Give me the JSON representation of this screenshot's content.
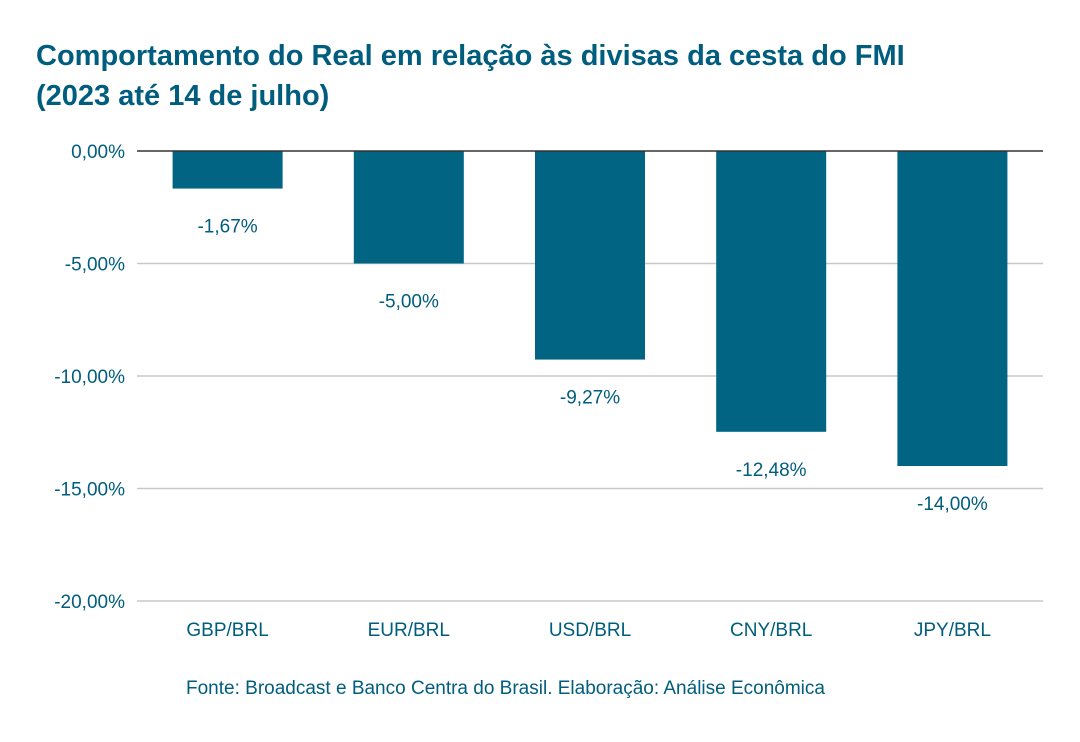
{
  "chart_data": {
    "type": "bar",
    "title": "Comportamento do Real em relação às divisas da cesta do FMI",
    "subtitle": "(2023 até 14 de julho)",
    "xlabel": "",
    "ylabel": "",
    "categories": [
      "GBP/BRL",
      "EUR/BRL",
      "USD/BRL",
      "CNY/BRL",
      "JPY/BRL"
    ],
    "values": [
      -1.67,
      -5.0,
      -9.27,
      -12.48,
      -14.0
    ],
    "data_labels": [
      "-1,67%",
      "-5,00%",
      "-9,27%",
      "-12,48%",
      "-14,00%"
    ],
    "ylim": [
      -20,
      0
    ],
    "yticks": [
      0,
      -5,
      -10,
      -15,
      -20
    ],
    "ytick_labels": [
      "0,00%",
      "-5,00%",
      "-10,00%",
      "-15,00%",
      "-20,00%"
    ],
    "grid": true,
    "legend": "none",
    "colors": {
      "bar": "#006482",
      "text": "#005d7d",
      "grid": "#c8c8c8",
      "zero_line": "#333333"
    }
  },
  "source": "Fonte: Broadcast e Banco Centra do Brasil. Elaboração: Análise Econômica"
}
